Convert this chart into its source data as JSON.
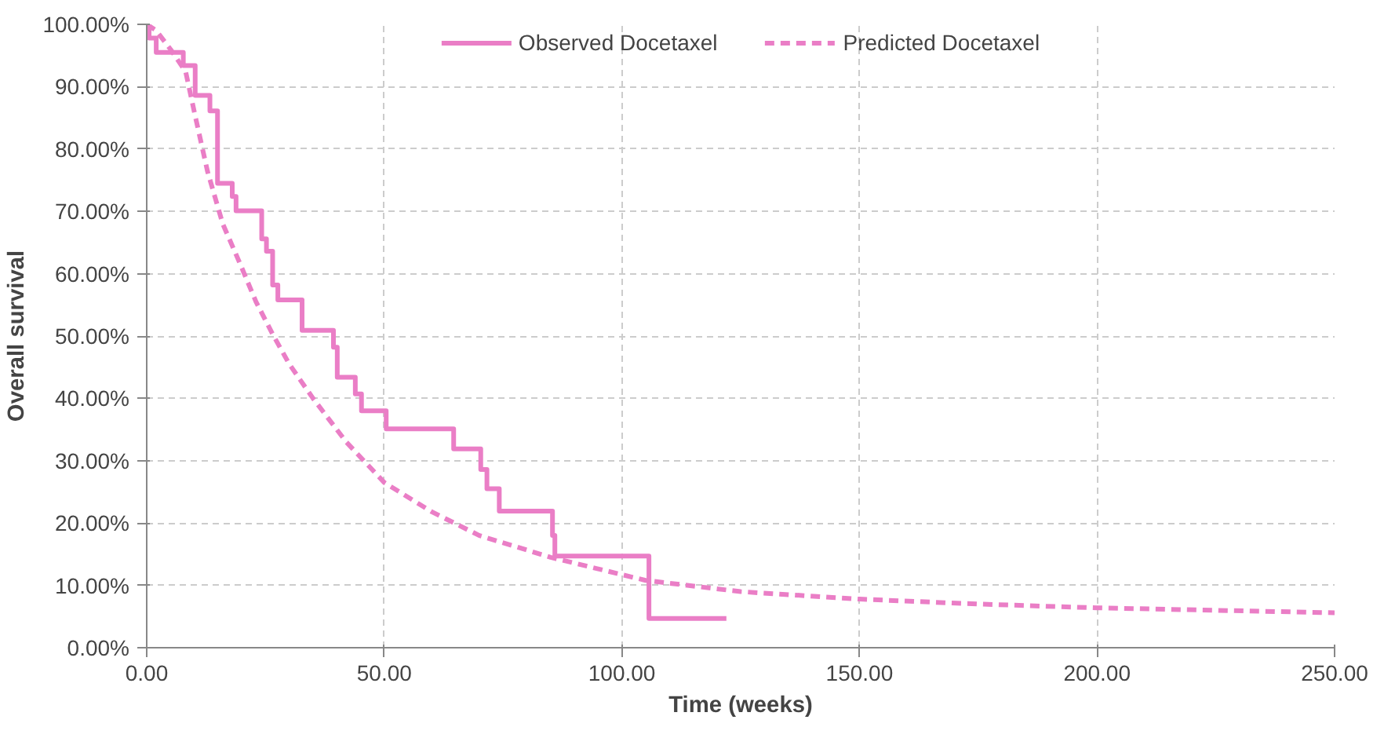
{
  "chart_data": {
    "type": "line",
    "xlabel": "Time (weeks)",
    "ylabel": "Overall survival",
    "xlim": [
      0,
      250
    ],
    "ylim": [
      0,
      100
    ],
    "xticks": [
      {
        "value": 0,
        "label": "0.00"
      },
      {
        "value": 50,
        "label": "50.00"
      },
      {
        "value": 100,
        "label": "100.00"
      },
      {
        "value": 150,
        "label": "150.00"
      },
      {
        "value": 200,
        "label": "200.00"
      },
      {
        "value": 250,
        "label": "250.00"
      }
    ],
    "yticks": [
      {
        "value": 0,
        "label": "0.00%"
      },
      {
        "value": 10,
        "label": "10.00%"
      },
      {
        "value": 20,
        "label": "20.00%"
      },
      {
        "value": 30,
        "label": "30.00%"
      },
      {
        "value": 40,
        "label": "40.00%"
      },
      {
        "value": 50,
        "label": "50.00%"
      },
      {
        "value": 60,
        "label": "60.00%"
      },
      {
        "value": 70,
        "label": "70.00%"
      },
      {
        "value": 80,
        "label": "80.00%"
      },
      {
        "value": 90,
        "label": "90.00%"
      },
      {
        "value": 100,
        "label": "100.00%"
      }
    ],
    "grid": true,
    "legend": "top",
    "marker": "none",
    "series": [
      {
        "name": "Observed Docetaxel",
        "type": "step",
        "line_style": "solid",
        "color": "#ea7ec6",
        "x": [
          0,
          0.5,
          2,
          7.7,
          10.2,
          13.3,
          14.9,
          18,
          18.8,
          24.2,
          25.2,
          26.5,
          27.6,
          32.7,
          39.3,
          40.1,
          43.9,
          45.2,
          50.4,
          64.6,
          70.3,
          71.6,
          74.2,
          85.4,
          85.9,
          105.7,
          122
        ],
        "values": [
          100,
          97.8,
          95.5,
          93.4,
          88.6,
          86.1,
          74.5,
          72.4,
          70.1,
          65.6,
          63.6,
          58.2,
          55.8,
          50.9,
          48.2,
          43.4,
          40.7,
          38.0,
          35.1,
          31.9,
          28.6,
          25.5,
          21.9,
          18.0,
          14.7,
          4.7,
          4.7
        ]
      },
      {
        "name": "Predicted Docetaxel",
        "line_style": "dashed",
        "color": "#ea7ec6",
        "x": [
          0,
          2,
          5,
          8.2,
          10,
          12.8,
          16,
          19.7,
          23,
          26.5,
          30,
          35,
          42,
          50,
          60,
          70,
          85,
          105,
          125,
          150,
          175,
          200,
          225,
          250
        ],
        "values": [
          100,
          99,
          96,
          92.4,
          86,
          76.4,
          68,
          61.5,
          55.5,
          50.3,
          45.5,
          40,
          33,
          26.5,
          21.8,
          18,
          14.5,
          10.8,
          9,
          7.8,
          7,
          6.4,
          6,
          5.6
        ]
      }
    ]
  }
}
